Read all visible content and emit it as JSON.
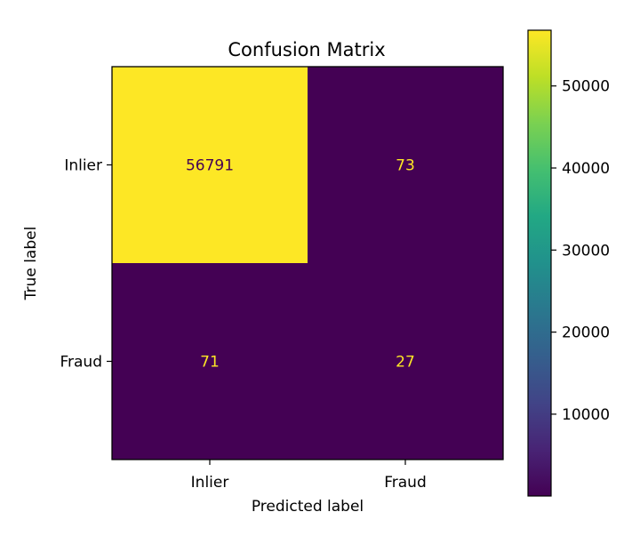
{
  "chart_data": {
    "type": "heatmap",
    "title": "Confusion Matrix",
    "xlabel": "Predicted label",
    "ylabel": "True label",
    "x_categories": [
      "Inlier",
      "Fraud"
    ],
    "y_categories": [
      "Inlier",
      "Fraud"
    ],
    "values": [
      [
        56791,
        73
      ],
      [
        71,
        27
      ]
    ],
    "colormap": "viridis",
    "colorbar": {
      "vmin": 27,
      "vmax": 56791,
      "ticks": [
        10000,
        20000,
        30000,
        40000,
        50000
      ],
      "tick_labels": [
        "10000",
        "20000",
        "30000",
        "40000",
        "50000"
      ]
    },
    "colors": {
      "high": "#fde725",
      "low": "#440154",
      "label_on_dark": "#fde725",
      "label_on_light": "#440154"
    }
  }
}
